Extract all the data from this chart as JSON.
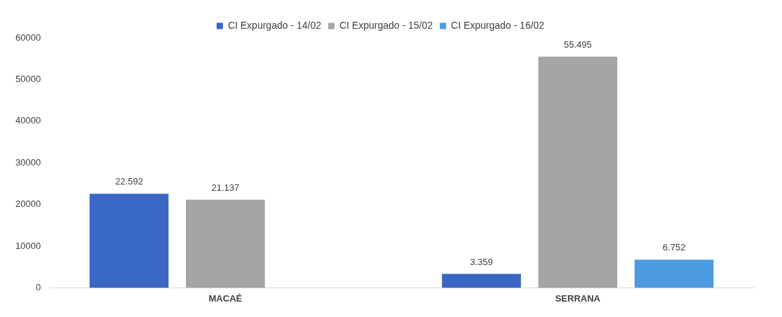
{
  "chart_data": {
    "type": "bar",
    "categories": [
      "MACAÉ",
      "SERRANA"
    ],
    "series": [
      {
        "name": "CI Expurgado - 14/02",
        "color": "#3a66c4",
        "values": [
          22592,
          3359
        ],
        "value_labels": [
          "22.592",
          "3.359"
        ]
      },
      {
        "name": "CI Expurgado - 15/02",
        "color": "#a5a5a5",
        "values": [
          21137,
          55495
        ],
        "value_labels": [
          "21.137",
          "55.495"
        ]
      },
      {
        "name": "CI Expurgado - 16/02",
        "color": "#4d9be0",
        "values": [
          null,
          6752
        ],
        "value_labels": [
          null,
          "6.752"
        ]
      }
    ],
    "ylim": [
      0,
      60000
    ],
    "yticks": [
      0,
      10000,
      20000,
      30000,
      40000,
      50000,
      60000
    ],
    "grid": false,
    "legend": "top"
  }
}
